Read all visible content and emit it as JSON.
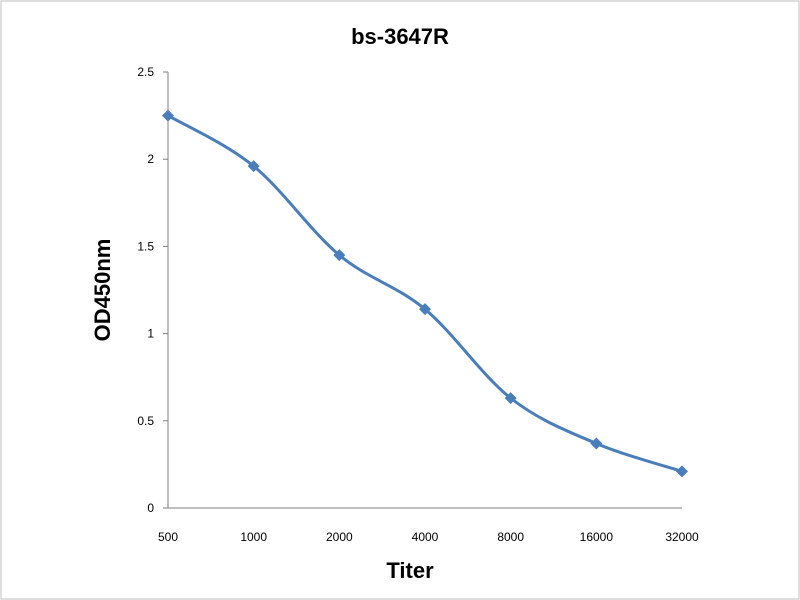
{
  "chart_data": {
    "type": "line",
    "title": "bs-3647R",
    "xlabel": "Titer",
    "ylabel": "OD450nm",
    "categories": [
      "500",
      "1000",
      "2000",
      "4000",
      "8000",
      "16000",
      "32000"
    ],
    "series": [
      {
        "values": [
          2.25,
          1.96,
          1.45,
          1.14,
          0.63,
          0.37,
          0.21
        ]
      }
    ],
    "ylim": [
      0,
      2.5
    ],
    "yticks": [
      "0",
      "0.5",
      "1",
      "1.5",
      "2",
      "2.5"
    ],
    "grid": false,
    "legend": "none",
    "line_style": "smoothed",
    "marker": "diamond",
    "line_color": "#4a7ebb",
    "marker_color": "#4a7ebb"
  }
}
